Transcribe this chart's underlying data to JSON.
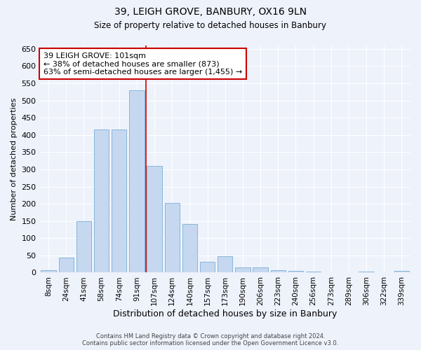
{
  "title1": "39, LEIGH GROVE, BANBURY, OX16 9LN",
  "title2": "Size of property relative to detached houses in Banbury",
  "xlabel": "Distribution of detached houses by size in Banbury",
  "ylabel": "Number of detached properties",
  "categories": [
    "8sqm",
    "24sqm",
    "41sqm",
    "58sqm",
    "74sqm",
    "91sqm",
    "107sqm",
    "124sqm",
    "140sqm",
    "157sqm",
    "173sqm",
    "190sqm",
    "206sqm",
    "223sqm",
    "240sqm",
    "256sqm",
    "273sqm",
    "289sqm",
    "306sqm",
    "322sqm",
    "339sqm"
  ],
  "values": [
    8,
    43,
    150,
    415,
    416,
    530,
    310,
    203,
    141,
    32,
    48,
    15,
    15,
    8,
    5,
    3,
    1,
    1,
    2,
    1,
    5
  ],
  "bar_color": "#c5d8f0",
  "bar_edge_color": "#7aafd4",
  "vline_color": "#cc0000",
  "annotation_box_color": "#ffffff",
  "annotation_box_edge": "#cc0000",
  "property_line_label": "39 LEIGH GROVE: 101sqm",
  "annotation_line1": "← 38% of detached houses are smaller (873)",
  "annotation_line2": "63% of semi-detached houses are larger (1,455) →",
  "ylim": [
    0,
    660
  ],
  "yticks": [
    0,
    50,
    100,
    150,
    200,
    250,
    300,
    350,
    400,
    450,
    500,
    550,
    600,
    650
  ],
  "background_color": "#eef2fb",
  "grid_color": "#ffffff",
  "footnote1": "Contains HM Land Registry data © Crown copyright and database right 2024.",
  "footnote2": "Contains public sector information licensed under the Open Government Licence v3.0."
}
